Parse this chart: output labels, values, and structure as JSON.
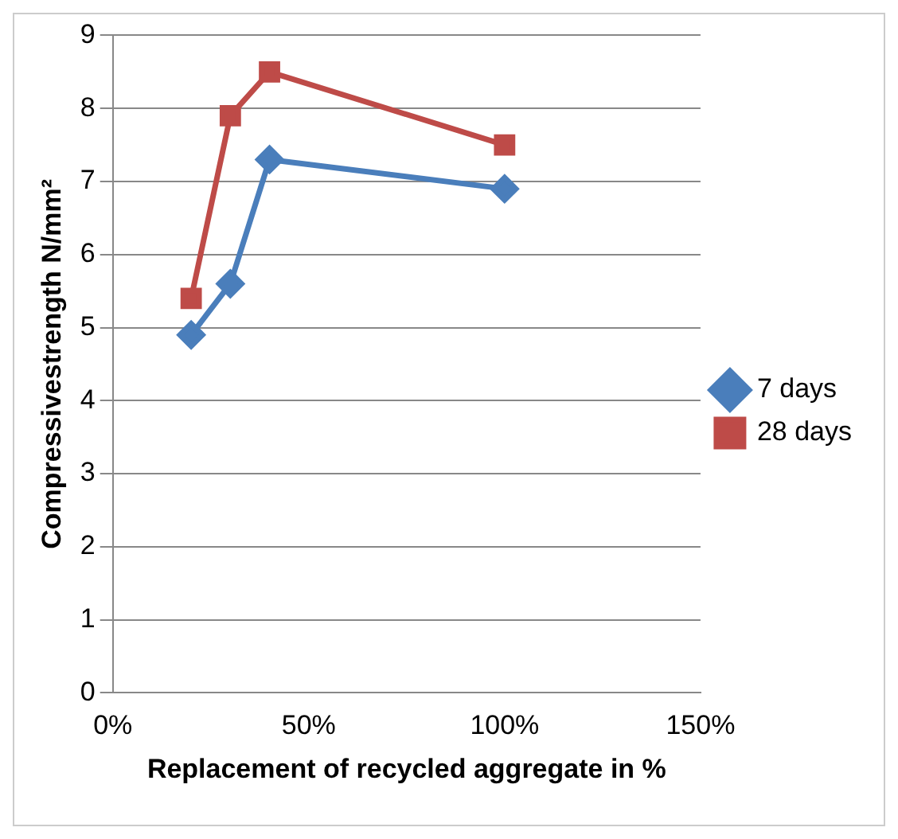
{
  "chart_data": {
    "type": "line",
    "xlabel": "Replacement of recycled aggregate in %",
    "ylabel": "Compressivestrength N/mm²",
    "x": [
      20,
      30,
      40,
      100
    ],
    "series": [
      {
        "name": "7 days",
        "color": "#4a7ebb",
        "marker": "diamond",
        "values": [
          4.9,
          5.6,
          7.3,
          6.9
        ]
      },
      {
        "name": "28 days",
        "color": "#be4b48",
        "marker": "square",
        "values": [
          5.4,
          7.9,
          8.5,
          7.5
        ]
      }
    ],
    "xlim": [
      0,
      150
    ],
    "xticks": [
      {
        "value": 0,
        "label": "0%"
      },
      {
        "value": 50,
        "label": "50%"
      },
      {
        "value": 100,
        "label": "100%"
      },
      {
        "value": 150,
        "label": "150%"
      }
    ],
    "ylim": [
      0,
      9
    ],
    "yticks": [
      0,
      1,
      2,
      3,
      4,
      5,
      6,
      7,
      8,
      9
    ],
    "grid": "y",
    "legend": "right"
  }
}
